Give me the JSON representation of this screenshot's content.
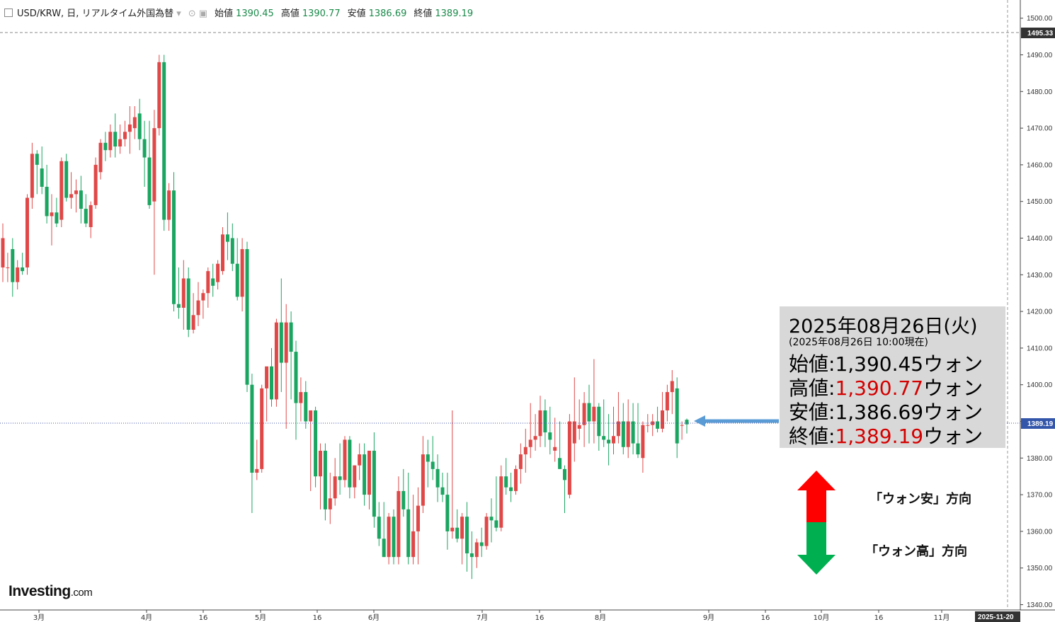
{
  "header": {
    "symbol": "USD/KRW, 日, リアルタイム外国為替",
    "open_label": "始値",
    "open_value": "1390.45",
    "high_label": "高値",
    "high_value": "1390.77",
    "low_label": "安値",
    "low_value": "1386.69",
    "close_label": "終値",
    "close_value": "1389.19"
  },
  "info_box": {
    "date": "2025年08月26日(火)",
    "asof": "(2025年08月26日 10:00現在)",
    "open_label": "始値:",
    "open": "1,390.45",
    "unit": "ウォン",
    "high_label": "高値:",
    "high": "1,390.77",
    "low_label": "安値:",
    "low": "1,386.69",
    "close_label": "終値:",
    "close": "1,389.19"
  },
  "direction": {
    "up_label": "「ウォン安」方向",
    "down_label": "「ウォン高」方向"
  },
  "logo": {
    "name": "Investing",
    "domain": ".com"
  },
  "colors": {
    "up": "#e04848",
    "down": "#1aa560",
    "info_bg": "#d8d8d8",
    "arrow": "#5b9bd5",
    "guide": "#4455aa",
    "red": "#d40000",
    "green": "#00b050"
  },
  "chart_data": {
    "type": "candlestick",
    "ylim": [
      1338,
      1505
    ],
    "y_ticks": [
      "1340.00",
      "1350.00",
      "1360.00",
      "1370.00",
      "1380.00",
      "1390.00",
      "1400.00",
      "1410.00",
      "1420.00",
      "1430.00",
      "1440.00",
      "1450.00",
      "1460.00",
      "1470.00",
      "1480.00",
      "1490.00",
      "1500.00"
    ],
    "price_tag_high": "1495.33",
    "price_tag_last": "1389.19",
    "x_labels": [
      "3月",
      "4月",
      "16",
      "5月",
      "16",
      "6月",
      "7月",
      "16",
      "8月",
      "9月",
      "16",
      "10月",
      "16",
      "11月",
      "2025-11-20"
    ],
    "candles": [
      {
        "o": 1432.0,
        "h": 1444.0,
        "l": 1428.0,
        "c": 1440.0
      },
      {
        "o": 1432.0,
        "h": 1436.0,
        "l": 1428.0,
        "c": 1432.0
      },
      {
        "o": 1437.0,
        "h": 1440.0,
        "l": 1424.0,
        "c": 1428.0
      },
      {
        "o": 1428.0,
        "h": 1434.0,
        "l": 1426.0,
        "c": 1432.0
      },
      {
        "o": 1432.0,
        "h": 1436.0,
        "l": 1430.0,
        "c": 1431.0
      },
      {
        "o": 1432.0,
        "h": 1452.0,
        "l": 1430.0,
        "c": 1451.0
      },
      {
        "o": 1451.0,
        "h": 1466.0,
        "l": 1448.0,
        "c": 1463.0
      },
      {
        "o": 1463.0,
        "h": 1464.0,
        "l": 1452.0,
        "c": 1460.0
      },
      {
        "o": 1459.0,
        "h": 1465.0,
        "l": 1452.0,
        "c": 1454.0
      },
      {
        "o": 1454.0,
        "h": 1460.0,
        "l": 1444.0,
        "c": 1446.0
      },
      {
        "o": 1446.0,
        "h": 1452.0,
        "l": 1438.0,
        "c": 1447.0
      },
      {
        "o": 1447.0,
        "h": 1451.0,
        "l": 1443.0,
        "c": 1444.0
      },
      {
        "o": 1445.0,
        "h": 1462.0,
        "l": 1443.0,
        "c": 1461.0
      },
      {
        "o": 1461.0,
        "h": 1463.0,
        "l": 1450.0,
        "c": 1451.0
      },
      {
        "o": 1451.0,
        "h": 1458.0,
        "l": 1448.0,
        "c": 1452.0
      },
      {
        "o": 1452.0,
        "h": 1456.0,
        "l": 1447.0,
        "c": 1453.0
      },
      {
        "o": 1453.0,
        "h": 1457.0,
        "l": 1444.0,
        "c": 1448.0
      },
      {
        "o": 1448.0,
        "h": 1452.0,
        "l": 1443.0,
        "c": 1444.0
      },
      {
        "o": 1443.0,
        "h": 1450.0,
        "l": 1440.0,
        "c": 1449.0
      },
      {
        "o": 1449.0,
        "h": 1462.0,
        "l": 1448.0,
        "c": 1460.0
      },
      {
        "o": 1458.0,
        "h": 1467.0,
        "l": 1456.0,
        "c": 1466.0
      },
      {
        "o": 1466.0,
        "h": 1469.0,
        "l": 1461.0,
        "c": 1464.0
      },
      {
        "o": 1464.0,
        "h": 1471.0,
        "l": 1462.0,
        "c": 1469.0
      },
      {
        "o": 1469.0,
        "h": 1474.0,
        "l": 1462.0,
        "c": 1465.0
      },
      {
        "o": 1465.0,
        "h": 1471.0,
        "l": 1463.0,
        "c": 1467.0
      },
      {
        "o": 1467.0,
        "h": 1472.0,
        "l": 1465.0,
        "c": 1469.0
      },
      {
        "o": 1469.0,
        "h": 1476.0,
        "l": 1463.0,
        "c": 1471.0
      },
      {
        "o": 1470.0,
        "h": 1476.0,
        "l": 1467.0,
        "c": 1473.0
      },
      {
        "o": 1474.0,
        "h": 1478.0,
        "l": 1464.0,
        "c": 1467.0
      },
      {
        "o": 1467.0,
        "h": 1472.0,
        "l": 1454.0,
        "c": 1462.0
      },
      {
        "o": 1462.0,
        "h": 1472.0,
        "l": 1448.0,
        "c": 1449.0
      },
      {
        "o": 1450.0,
        "h": 1475.0,
        "l": 1430.0,
        "c": 1470.0
      },
      {
        "o": 1470.0,
        "h": 1490.0,
        "l": 1468.0,
        "c": 1488.0
      },
      {
        "o": 1488.0,
        "h": 1490.0,
        "l": 1442.0,
        "c": 1445.0
      },
      {
        "o": 1445.0,
        "h": 1455.0,
        "l": 1442.0,
        "c": 1453.0
      },
      {
        "o": 1453.0,
        "h": 1458.0,
        "l": 1420.0,
        "c": 1422.0
      },
      {
        "o": 1422.0,
        "h": 1432.0,
        "l": 1418.0,
        "c": 1421.0
      },
      {
        "o": 1421.0,
        "h": 1434.0,
        "l": 1415.0,
        "c": 1429.0
      },
      {
        "o": 1429.0,
        "h": 1432.0,
        "l": 1413.0,
        "c": 1415.0
      },
      {
        "o": 1415.0,
        "h": 1425.0,
        "l": 1414.0,
        "c": 1419.0
      },
      {
        "o": 1419.0,
        "h": 1428.0,
        "l": 1416.0,
        "c": 1423.0
      },
      {
        "o": 1423.0,
        "h": 1426.0,
        "l": 1418.0,
        "c": 1425.0
      },
      {
        "o": 1425.0,
        "h": 1432.0,
        "l": 1421.0,
        "c": 1431.0
      },
      {
        "o": 1429.0,
        "h": 1433.0,
        "l": 1424.0,
        "c": 1427.0
      },
      {
        "o": 1428.0,
        "h": 1434.0,
        "l": 1426.0,
        "c": 1433.0
      },
      {
        "o": 1431.0,
        "h": 1443.0,
        "l": 1430.0,
        "c": 1441.0
      },
      {
        "o": 1441.0,
        "h": 1447.0,
        "l": 1434.0,
        "c": 1439.0
      },
      {
        "o": 1440.0,
        "h": 1444.0,
        "l": 1431.0,
        "c": 1433.0
      },
      {
        "o": 1433.0,
        "h": 1440.0,
        "l": 1423.0,
        "c": 1424.0
      },
      {
        "o": 1424.0,
        "h": 1440.0,
        "l": 1420.0,
        "c": 1437.0
      },
      {
        "o": 1437.0,
        "h": 1439.0,
        "l": 1398.0,
        "c": 1400.0
      },
      {
        "o": 1400.0,
        "h": 1403.0,
        "l": 1365.0,
        "c": 1376.0
      },
      {
        "o": 1376.0,
        "h": 1385.0,
        "l": 1374.0,
        "c": 1377.0
      },
      {
        "o": 1377.0,
        "h": 1400.0,
        "l": 1376.0,
        "c": 1399.0
      },
      {
        "o": 1399.0,
        "h": 1404.0,
        "l": 1390.0,
        "c": 1405.0
      },
      {
        "o": 1405.0,
        "h": 1410.0,
        "l": 1394.0,
        "c": 1396.0
      },
      {
        "o": 1396.0,
        "h": 1418.0,
        "l": 1394.0,
        "c": 1417.0
      },
      {
        "o": 1417.0,
        "h": 1429.0,
        "l": 1398.0,
        "c": 1406.0
      },
      {
        "o": 1406.0,
        "h": 1422.0,
        "l": 1388.0,
        "c": 1417.0
      },
      {
        "o": 1417.0,
        "h": 1420.0,
        "l": 1396.0,
        "c": 1409.0
      },
      {
        "o": 1409.0,
        "h": 1412.0,
        "l": 1385.0,
        "c": 1395.0
      },
      {
        "o": 1395.0,
        "h": 1402.0,
        "l": 1390.0,
        "c": 1398.0
      },
      {
        "o": 1398.0,
        "h": 1401.0,
        "l": 1388.0,
        "c": 1390.0
      },
      {
        "o": 1390.0,
        "h": 1393.0,
        "l": 1371.0,
        "c": 1393.0
      },
      {
        "o": 1393.0,
        "h": 1394.0,
        "l": 1372.0,
        "c": 1375.0
      },
      {
        "o": 1375.0,
        "h": 1384.0,
        "l": 1366.0,
        "c": 1382.0
      },
      {
        "o": 1382.0,
        "h": 1384.0,
        "l": 1363.0,
        "c": 1366.0
      },
      {
        "o": 1366.0,
        "h": 1376.0,
        "l": 1362.0,
        "c": 1369.0
      },
      {
        "o": 1369.0,
        "h": 1380.0,
        "l": 1367.0,
        "c": 1375.0
      },
      {
        "o": 1375.0,
        "h": 1384.0,
        "l": 1370.0,
        "c": 1374.0
      },
      {
        "o": 1374.0,
        "h": 1386.0,
        "l": 1372.0,
        "c": 1385.0
      },
      {
        "o": 1385.0,
        "h": 1386.0,
        "l": 1369.0,
        "c": 1372.0
      },
      {
        "o": 1372.0,
        "h": 1378.0,
        "l": 1369.0,
        "c": 1378.0
      },
      {
        "o": 1378.0,
        "h": 1384.0,
        "l": 1374.0,
        "c": 1381.0
      },
      {
        "o": 1381.0,
        "h": 1384.0,
        "l": 1367.0,
        "c": 1370.0
      },
      {
        "o": 1370.0,
        "h": 1381.0,
        "l": 1366.0,
        "c": 1382.0
      },
      {
        "o": 1382.0,
        "h": 1387.0,
        "l": 1361.0,
        "c": 1364.0
      },
      {
        "o": 1364.0,
        "h": 1368.0,
        "l": 1356.0,
        "c": 1358.0
      },
      {
        "o": 1358.0,
        "h": 1368.0,
        "l": 1353.0,
        "c": 1353.0
      },
      {
        "o": 1353.0,
        "h": 1365.0,
        "l": 1351.0,
        "c": 1364.0
      },
      {
        "o": 1364.0,
        "h": 1366.0,
        "l": 1351.0,
        "c": 1353.0
      },
      {
        "o": 1353.0,
        "h": 1375.0,
        "l": 1351.0,
        "c": 1371.0
      },
      {
        "o": 1371.0,
        "h": 1377.0,
        "l": 1364.0,
        "c": 1366.0
      },
      {
        "o": 1366.0,
        "h": 1376.0,
        "l": 1351.0,
        "c": 1353.0
      },
      {
        "o": 1353.0,
        "h": 1370.0,
        "l": 1351.0,
        "c": 1360.0
      },
      {
        "o": 1360.0,
        "h": 1372.0,
        "l": 1351.0,
        "c": 1367.0
      },
      {
        "o": 1367.0,
        "h": 1386.0,
        "l": 1365.0,
        "c": 1381.0
      },
      {
        "o": 1381.0,
        "h": 1385.0,
        "l": 1372.0,
        "c": 1379.0
      },
      {
        "o": 1379.0,
        "h": 1386.0,
        "l": 1374.0,
        "c": 1377.0
      },
      {
        "o": 1377.0,
        "h": 1381.0,
        "l": 1368.0,
        "c": 1372.0
      },
      {
        "o": 1372.0,
        "h": 1376.0,
        "l": 1368.0,
        "c": 1370.0
      },
      {
        "o": 1370.0,
        "h": 1376.0,
        "l": 1355.0,
        "c": 1360.0
      },
      {
        "o": 1360.0,
        "h": 1393.0,
        "l": 1358.0,
        "c": 1361.0
      },
      {
        "o": 1361.0,
        "h": 1366.0,
        "l": 1357.0,
        "c": 1358.0
      },
      {
        "o": 1358.0,
        "h": 1365.0,
        "l": 1351.0,
        "c": 1364.0
      },
      {
        "o": 1364.0,
        "h": 1368.0,
        "l": 1349.0,
        "c": 1354.0
      },
      {
        "o": 1354.0,
        "h": 1360.0,
        "l": 1347.0,
        "c": 1353.0
      },
      {
        "o": 1353.0,
        "h": 1358.0,
        "l": 1350.0,
        "c": 1357.0
      },
      {
        "o": 1357.0,
        "h": 1361.0,
        "l": 1353.0,
        "c": 1356.0
      },
      {
        "o": 1356.0,
        "h": 1365.0,
        "l": 1355.0,
        "c": 1364.0
      },
      {
        "o": 1364.0,
        "h": 1369.0,
        "l": 1357.0,
        "c": 1363.0
      },
      {
        "o": 1363.0,
        "h": 1375.0,
        "l": 1360.0,
        "c": 1361.0
      },
      {
        "o": 1361.0,
        "h": 1378.0,
        "l": 1360.0,
        "c": 1375.0
      },
      {
        "o": 1375.0,
        "h": 1380.0,
        "l": 1370.0,
        "c": 1372.0
      },
      {
        "o": 1372.0,
        "h": 1376.0,
        "l": 1368.0,
        "c": 1371.0
      },
      {
        "o": 1371.0,
        "h": 1378.0,
        "l": 1370.0,
        "c": 1377.0
      },
      {
        "o": 1377.0,
        "h": 1384.0,
        "l": 1373.0,
        "c": 1381.0
      },
      {
        "o": 1381.0,
        "h": 1388.0,
        "l": 1376.0,
        "c": 1383.0
      },
      {
        "o": 1383.0,
        "h": 1395.0,
        "l": 1380.0,
        "c": 1385.0
      },
      {
        "o": 1385.0,
        "h": 1392.0,
        "l": 1382.0,
        "c": 1386.0
      },
      {
        "o": 1386.0,
        "h": 1397.0,
        "l": 1383.0,
        "c": 1393.0
      },
      {
        "o": 1393.0,
        "h": 1396.0,
        "l": 1383.0,
        "c": 1387.0
      },
      {
        "o": 1387.0,
        "h": 1394.0,
        "l": 1381.0,
        "c": 1385.0
      },
      {
        "o": 1382.0,
        "h": 1391.0,
        "l": 1379.0,
        "c": 1383.0
      },
      {
        "o": 1380.0,
        "h": 1390.0,
        "l": 1378.0,
        "c": 1377.0
      },
      {
        "o": 1377.0,
        "h": 1378.0,
        "l": 1365.0,
        "c": 1374.0
      },
      {
        "o": 1370.0,
        "h": 1392.0,
        "l": 1369.0,
        "c": 1390.0
      },
      {
        "o": 1384.0,
        "h": 1402.0,
        "l": 1379.0,
        "c": 1390.0
      },
      {
        "o": 1388.0,
        "h": 1396.0,
        "l": 1385.0,
        "c": 1389.0
      },
      {
        "o": 1389.0,
        "h": 1398.0,
        "l": 1383.0,
        "c": 1395.0
      },
      {
        "o": 1395.0,
        "h": 1400.0,
        "l": 1384.0,
        "c": 1390.0
      },
      {
        "o": 1390.0,
        "h": 1407.0,
        "l": 1384.0,
        "c": 1394.0
      },
      {
        "o": 1394.0,
        "h": 1395.0,
        "l": 1382.0,
        "c": 1386.0
      },
      {
        "o": 1386.0,
        "h": 1396.0,
        "l": 1383.0,
        "c": 1385.0
      },
      {
        "o": 1385.0,
        "h": 1392.0,
        "l": 1378.0,
        "c": 1384.0
      },
      {
        "o": 1384.0,
        "h": 1394.0,
        "l": 1381.0,
        "c": 1386.0
      },
      {
        "o": 1386.0,
        "h": 1398.0,
        "l": 1384.0,
        "c": 1390.0
      },
      {
        "o": 1390.0,
        "h": 1395.0,
        "l": 1381.0,
        "c": 1383.0
      },
      {
        "o": 1383.0,
        "h": 1396.0,
        "l": 1380.0,
        "c": 1390.0
      },
      {
        "o": 1390.0,
        "h": 1395.0,
        "l": 1381.0,
        "c": 1384.0
      },
      {
        "o": 1384.0,
        "h": 1395.0,
        "l": 1380.0,
        "c": 1381.0
      },
      {
        "o": 1380.0,
        "h": 1390.0,
        "l": 1376.0,
        "c": 1389.0
      },
      {
        "o": 1389.0,
        "h": 1392.0,
        "l": 1387.0,
        "c": 1389.0
      },
      {
        "o": 1389.0,
        "h": 1392.0,
        "l": 1386.0,
        "c": 1390.0
      },
      {
        "o": 1390.0,
        "h": 1394.0,
        "l": 1387.0,
        "c": 1388.0
      },
      {
        "o": 1388.0,
        "h": 1398.0,
        "l": 1387.0,
        "c": 1393.0
      },
      {
        "o": 1393.0,
        "h": 1400.0,
        "l": 1390.0,
        "c": 1398.0
      },
      {
        "o": 1398.0,
        "h": 1404.0,
        "l": 1392.0,
        "c": 1401.0
      },
      {
        "o": 1399.0,
        "h": 1402.0,
        "l": 1380.0,
        "c": 1384.0
      },
      {
        "o": 1389.0,
        "h": 1390.0,
        "l": 1385.0,
        "c": 1389.0
      },
      {
        "o": 1390.45,
        "h": 1390.77,
        "l": 1386.69,
        "c": 1389.19
      }
    ]
  }
}
